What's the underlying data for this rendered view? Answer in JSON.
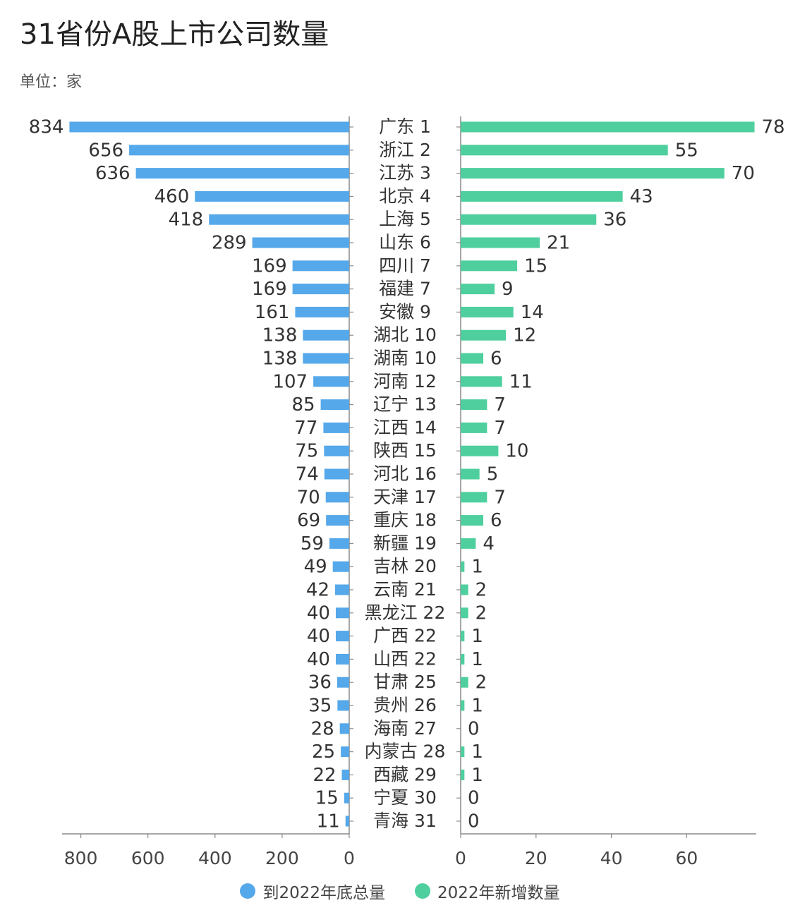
{
  "title": "31省份A股上市公司数量",
  "unit_label": "单位：家",
  "colors": {
    "total": "#55a8ea",
    "new": "#4fcf9e"
  },
  "chart_data": {
    "type": "bar",
    "orientation": "horizontal-butterfly",
    "categories": [
      "广东 1",
      "浙江 2",
      "江苏 3",
      "北京 4",
      "上海 5",
      "山东 6",
      "四川 7",
      "福建 7",
      "安徽 9",
      "湖北 10",
      "湖南 10",
      "河南 12",
      "辽宁 13",
      "江西 14",
      "陕西 15",
      "河北 16",
      "天津 17",
      "重庆 18",
      "新疆 19",
      "吉林 20",
      "云南 21",
      "黑龙江 22",
      "广西 22",
      "山西 22",
      "甘肃 25",
      "贵州 26",
      "海南 27",
      "内蒙古 28",
      "西藏 29",
      "宁夏 30",
      "青海 31"
    ],
    "series": [
      {
        "name": "到2022年底总量",
        "values": [
          834,
          656,
          636,
          460,
          418,
          289,
          169,
          169,
          161,
          138,
          138,
          107,
          85,
          77,
          75,
          74,
          70,
          69,
          59,
          49,
          42,
          40,
          40,
          40,
          36,
          35,
          28,
          25,
          22,
          15,
          11
        ],
        "xlim": [
          0,
          840
        ],
        "ticks": [
          "800",
          "600",
          "400",
          "200",
          "0"
        ],
        "tick_values": [
          800,
          600,
          400,
          200,
          0
        ]
      },
      {
        "name": "2022年新增数量",
        "values": [
          78,
          55,
          70,
          43,
          36,
          21,
          15,
          9,
          14,
          12,
          6,
          11,
          7,
          7,
          10,
          5,
          7,
          6,
          4,
          1,
          2,
          2,
          1,
          1,
          2,
          1,
          0,
          1,
          1,
          0,
          0
        ],
        "xlim": [
          0,
          78
        ],
        "ticks": [
          "0",
          "20",
          "40",
          "60"
        ],
        "tick_values": [
          0,
          20,
          40,
          60
        ]
      }
    ],
    "legend": "bottom-center"
  }
}
